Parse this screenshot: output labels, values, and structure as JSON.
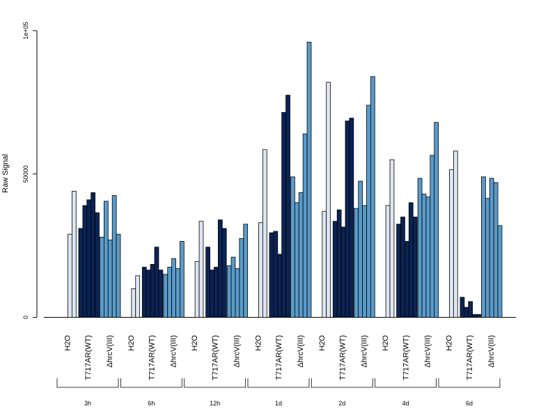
{
  "chart_data": {
    "type": "bar",
    "ylabel": "Raw Signal",
    "ylim": [
      0,
      100000
    ],
    "yticks": [
      {
        "value": 0,
        "label": "0"
      },
      {
        "value": 50000,
        "label": "50000"
      },
      {
        "value": 100000,
        "label": "1e+05"
      }
    ],
    "time_groups": [
      "3h",
      "6h",
      "12h",
      "1d",
      "2d",
      "4d",
      "6d"
    ],
    "subgroups": [
      "H2O",
      "T717AR(WT)",
      "ΔhrcV(III)"
    ],
    "colors": {
      "H2O": "#dde6f1",
      "T717AR(WT)": "#0b2354",
      "ΔhrcV(III)": "#5a9bc9"
    },
    "series": [
      {
        "time": "3h",
        "H2O": [
          29000,
          44000
        ],
        "T717AR(WT)": [
          31000,
          39000,
          41000,
          43500,
          36500
        ],
        "ΔhrcV(III)": [
          28000,
          40500,
          27000,
          42500,
          29000
        ]
      },
      {
        "time": "6h",
        "H2O": [
          10000,
          14500
        ],
        "T717AR(WT)": [
          17500,
          16500,
          18500,
          24500,
          16500
        ],
        "ΔhrcV(III)": [
          15000,
          17500,
          20500,
          17000,
          26500
        ]
      },
      {
        "time": "12h",
        "H2O": [
          19500,
          33500
        ],
        "T717AR(WT)": [
          24500,
          16500,
          17500,
          34000,
          31000
        ],
        "ΔhrcV(III)": [
          18000,
          21000,
          17000,
          27500,
          32500
        ]
      },
      {
        "time": "1d",
        "H2O": [
          33000,
          58500
        ],
        "T717AR(WT)": [
          29500,
          30000,
          22000,
          71500,
          77500
        ],
        "ΔhrcV(III)": [
          49000,
          40000,
          43500,
          64000,
          96000
        ]
      },
      {
        "time": "2d",
        "H2O": [
          37000,
          82000
        ],
        "T717AR(WT)": [
          33500,
          37500,
          31500,
          68500,
          69500
        ],
        "ΔhrcV(III)": [
          38000,
          47500,
          39000,
          74000,
          84000
        ]
      },
      {
        "time": "4d",
        "H2O": [
          39000,
          55000
        ],
        "T717AR(WT)": [
          32500,
          35000,
          26500,
          40000,
          35000
        ],
        "ΔhrcV(III)": [
          48500,
          43000,
          42000,
          56500,
          68000
        ]
      },
      {
        "time": "6d",
        "H2O": [
          51500,
          58000
        ],
        "T717AR(WT)": [
          7000,
          3500,
          5500,
          1000,
          1000
        ],
        "ΔhrcV(III)": [
          49000,
          41500,
          48500,
          47000,
          32000
        ]
      }
    ]
  }
}
